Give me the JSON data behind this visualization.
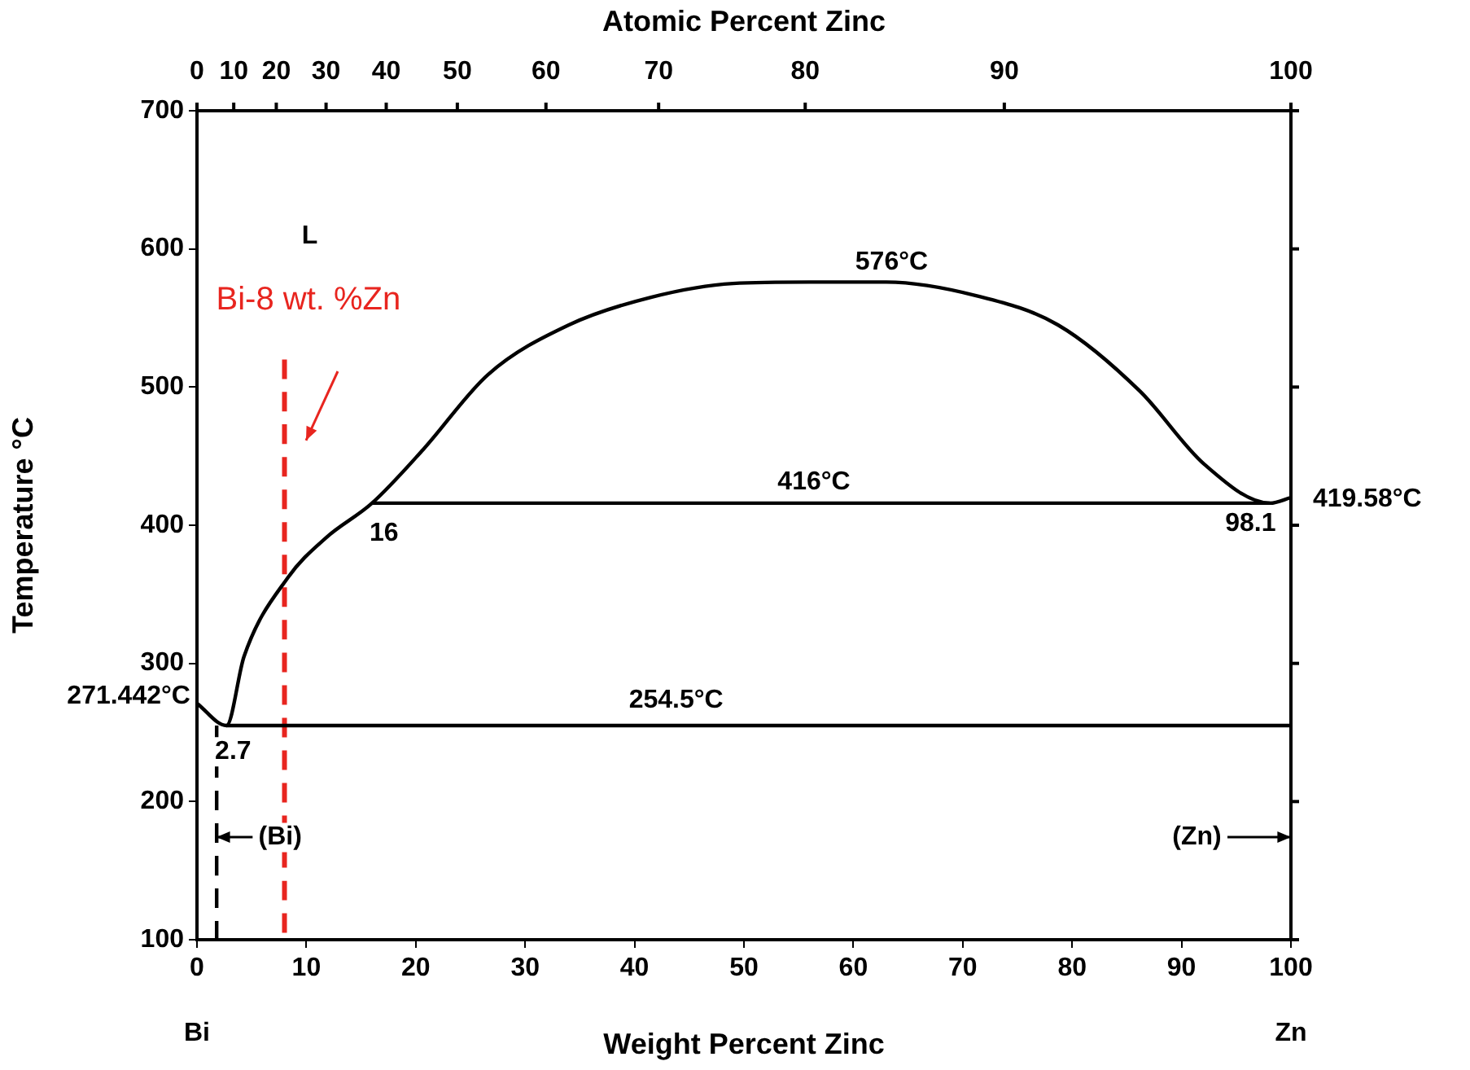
{
  "chart_data": {
    "type": "line",
    "xlabel": "Weight Percent Zinc",
    "x2label": "Atomic Percent Zinc",
    "ylabel": "Temperature °C",
    "xlim": [
      0,
      100
    ],
    "xticks": [
      0,
      10,
      20,
      30,
      40,
      50,
      60,
      70,
      80,
      90,
      100
    ],
    "ylim": [
      100,
      700
    ],
    "yticks": [
      100,
      200,
      300,
      400,
      500,
      600,
      700
    ],
    "grid": false,
    "legend": false,
    "marker": "none",
    "series": [
      {
        "color": "#000000",
        "x": [
          0,
          2.7,
          4.3,
          8.3,
          11.8,
          16,
          20.7,
          26.6,
          34,
          41.5,
          49,
          56,
          63,
          71.3,
          78.7,
          86.2,
          92.1,
          98.1,
          100
        ],
        "values": [
          271,
          255,
          305,
          362,
          391,
          416,
          455,
          509,
          545,
          565,
          575,
          576,
          576,
          566,
          545,
          497,
          444,
          416,
          420
        ]
      },
      {
        "color": "#000000",
        "x": [
          2.7,
          100
        ],
        "values": [
          255,
          255
        ]
      },
      {
        "color": "#000000",
        "x": [
          16,
          98.1
        ],
        "values": [
          416,
          416
        ]
      },
      {
        "color": "#000000",
        "line_style": "dashed",
        "x": [
          1.8,
          1.8
        ],
        "values": [
          255,
          100
        ]
      },
      {
        "name": "Bi-8 wt. %Zn",
        "color": "#e8251f",
        "line_style": "dashed",
        "x": [
          8,
          8
        ],
        "values": [
          520,
          100
        ]
      }
    ],
    "annotations": [
      "L",
      "576°C",
      "416°C",
      "254.5°C",
      "2.7",
      "16",
      "98.1",
      "271.442°C",
      "419.58°C",
      "(Bi)",
      "(Zn)",
      "Bi",
      "Zn",
      "0",
      "10",
      "20",
      "30",
      "40",
      "50",
      "60",
      "70",
      "80",
      "90",
      "100"
    ]
  }
}
